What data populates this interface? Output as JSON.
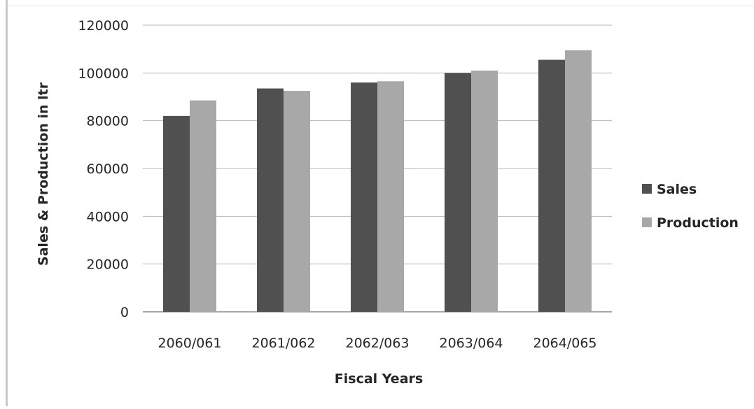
{
  "chart_data": {
    "type": "bar",
    "categories": [
      "2060/061",
      "2061/062",
      "2062/063",
      "2063/064",
      "2064/065"
    ],
    "series": [
      {
        "name": "Sales",
        "values": [
          82000,
          93500,
          96000,
          100000,
          105500
        ],
        "color": "#505050"
      },
      {
        "name": "Production",
        "values": [
          88500,
          92500,
          96500,
          101000,
          109500
        ],
        "color": "#a8a8a8"
      }
    ],
    "y_ticks": [
      "0",
      "20000",
      "40000",
      "60000",
      "80000",
      "100000",
      "120000"
    ],
    "ylim": [
      0,
      120000
    ],
    "xlabel": "Fiscal Years",
    "ylabel": "Sales & Production in ltr",
    "grid": true,
    "legend_position": "right"
  }
}
